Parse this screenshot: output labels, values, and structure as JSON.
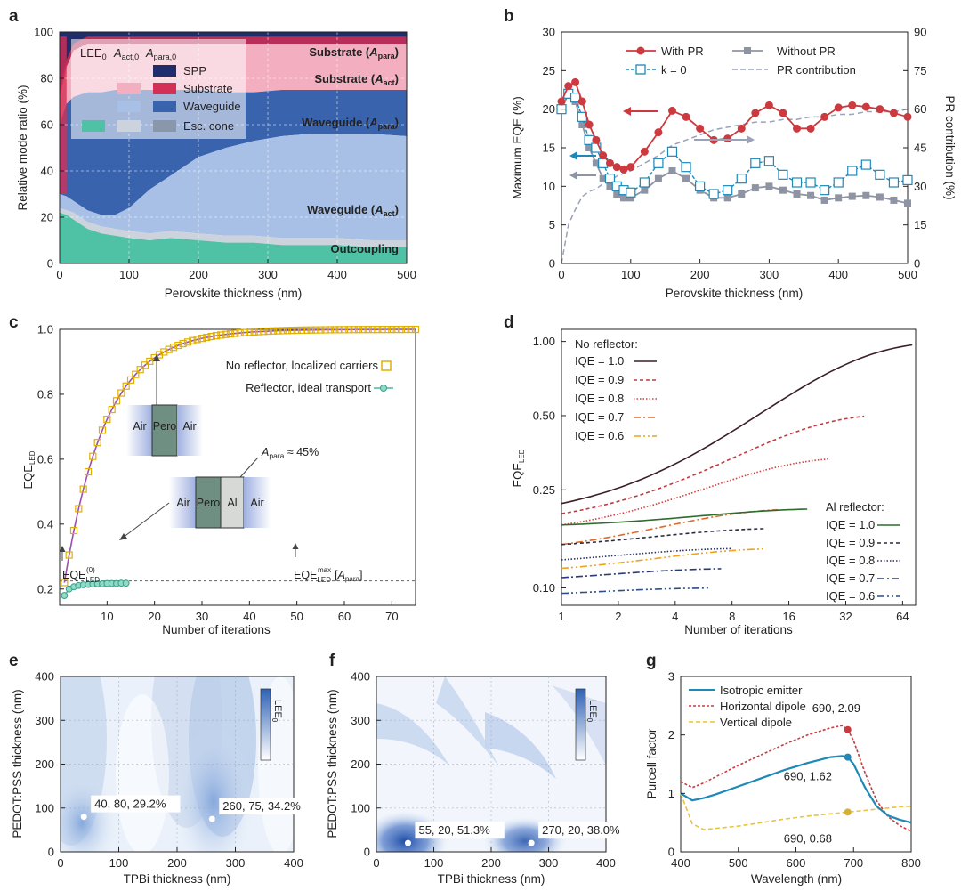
{
  "panel_letters": [
    "a",
    "b",
    "c",
    "d",
    "e",
    "f",
    "g"
  ],
  "colors": {
    "spp": "#1f2d6d",
    "substrate_dark": "#d42f55",
    "substrate_light": "#f3aebf",
    "waveguide_dark": "#3a63ad",
    "waveguide_light": "#a8c0e6",
    "esc_dark": "#8a96aa",
    "esc_light": "#cdd3dd",
    "outcoupling": "#4fc1a5",
    "red": "#cc3a3f",
    "blue": "#1e88b8",
    "gray": "#8e94a3"
  },
  "chart_data": [
    {
      "id": "a",
      "type": "area",
      "xlabel": "Perovskite thickness (nm)",
      "ylabel": "Relative mode ratio (%)",
      "xlim": [
        0,
        500
      ],
      "ylim": [
        0,
        100
      ],
      "xticks": [
        "0",
        "100",
        "200",
        "300",
        "400",
        "500"
      ],
      "yticks": [
        "0",
        "20",
        "40",
        "60",
        "80",
        "100"
      ],
      "x": [
        0,
        10,
        20,
        40,
        60,
        80,
        100,
        130,
        160,
        200,
        240,
        280,
        320,
        360,
        400,
        450,
        500
      ],
      "boundaries": {
        "outcoupling": [
          22,
          21,
          19,
          15,
          13,
          12,
          11,
          10,
          11,
          10,
          9,
          9,
          8,
          8,
          8,
          7,
          7
        ],
        "esc_cone": [
          24,
          23,
          22,
          18,
          16,
          15,
          14,
          13,
          14,
          13,
          12,
          12,
          11,
          11,
          11,
          10,
          10
        ],
        "waveguide_act": [
          30,
          29,
          27,
          23,
          21,
          21,
          24,
          32,
          38,
          46,
          50,
          53,
          55,
          56,
          56,
          56,
          55
        ],
        "waveguide_para": [
          60,
          69,
          72,
          74,
          74,
          75,
          75,
          75,
          75,
          75,
          74,
          74,
          75,
          75,
          75,
          75,
          75
        ],
        "substrate_act": [
          72,
          85,
          92,
          95,
          95,
          95,
          95,
          95,
          95,
          95,
          95,
          95,
          95,
          95,
          95,
          95,
          95
        ],
        "substrate_para": [
          100,
          100,
          100,
          100,
          100,
          100,
          100,
          100,
          100,
          100,
          100,
          100,
          100,
          100,
          100,
          100,
          100
        ]
      },
      "area_labels": [
        "Substrate (A_para)",
        "Substrate (A_act)",
        "Waveguide (A_para)",
        "Waveguide (A_act)",
        "Outcoupling"
      ],
      "legend_header": [
        "LEE0",
        "A_act,0",
        "A_para,0"
      ],
      "legend_items": [
        "SPP",
        "Substrate",
        "Waveguide",
        "Esc. cone"
      ]
    },
    {
      "id": "b",
      "type": "line",
      "xlabel": "Perovskite thickness (nm)",
      "ylabel": "Maximum EQE (%)",
      "y2label": "PR contribution (%)",
      "xlim": [
        0,
        500
      ],
      "ylim": [
        0,
        30
      ],
      "y2lim": [
        0,
        90
      ],
      "xticks": [
        "0",
        "100",
        "200",
        "300",
        "400",
        "500"
      ],
      "yticks": [
        "0",
        "5",
        "10",
        "15",
        "20",
        "25",
        "30"
      ],
      "y2ticks": [
        "0",
        "15",
        "30",
        "45",
        "60",
        "75",
        "90"
      ],
      "x": [
        0,
        10,
        20,
        30,
        40,
        50,
        60,
        70,
        80,
        90,
        100,
        120,
        140,
        160,
        180,
        200,
        220,
        240,
        260,
        280,
        300,
        320,
        340,
        360,
        380,
        400,
        420,
        440,
        460,
        480,
        500
      ],
      "series": [
        {
          "name": "With PR",
          "values": [
            21,
            23,
            23.5,
            21,
            18,
            16,
            14,
            13,
            12.5,
            12.2,
            12.5,
            14.5,
            17,
            19.8,
            19,
            17.5,
            16,
            16.2,
            17.5,
            19.5,
            20.5,
            19.5,
            17.5,
            17.5,
            19,
            20.2,
            20.5,
            20.3,
            20,
            19.5,
            19
          ]
        },
        {
          "name": "k = 0",
          "values": [
            20,
            22,
            21.5,
            19,
            16,
            15,
            13,
            11,
            10,
            9.5,
            9.2,
            10.5,
            13,
            14.5,
            12.5,
            10,
            9,
            9.5,
            11,
            13,
            13.3,
            11.5,
            10.5,
            10.5,
            9.5,
            10.5,
            12,
            12.8,
            11.5,
            10.5,
            10.8
          ]
        },
        {
          "name": "Without PR",
          "values": [
            20,
            22,
            21,
            18,
            15,
            13,
            11,
            10,
            9,
            8.5,
            8.5,
            9.5,
            11,
            12,
            11,
            9.5,
            8.5,
            8.5,
            9,
            9.8,
            10,
            9.5,
            9,
            8.8,
            8.2,
            8.5,
            8.7,
            8.8,
            8.6,
            8.2,
            7.8
          ]
        },
        {
          "name": "PR contribution",
          "axis": "right",
          "values": [
            0,
            15,
            21,
            26,
            28,
            29,
            31,
            32,
            34,
            35,
            36,
            39,
            42,
            46,
            48,
            50,
            52,
            53,
            54,
            55,
            55,
            56,
            56,
            57,
            57,
            58,
            58,
            59,
            59,
            59,
            60
          ]
        }
      ]
    },
    {
      "id": "c",
      "type": "line",
      "xlabel": "Number of iterations",
      "ylabel": "EQE_LED",
      "xlim": [
        0,
        75
      ],
      "ylim": [
        0.15,
        1.0
      ],
      "xticks": [
        "10",
        "20",
        "30",
        "40",
        "50",
        "60",
        "70"
      ],
      "yticks": [
        "0.2",
        "0.4",
        "0.6",
        "0.8",
        "1.0"
      ],
      "series": [
        {
          "name": "No reflector, localized carriers",
          "curve": "1 - 0.78*exp(-0.115*(n-1))"
        },
        {
          "name": "Reflector, ideal transport",
          "values": [
            0.18,
            0.2,
            0.207,
            0.211,
            0.213,
            0.214,
            0.215,
            0.216,
            0.216,
            0.217,
            0.217,
            0.217,
            0.218,
            0.218
          ]
        }
      ],
      "dashed_level": 0.225,
      "annotations": [
        "EQE_LED(0)",
        "EQE_LED max [A_para]",
        "A_para ≈ 45%"
      ],
      "inset_labels": {
        "top": [
          "Air",
          "Pero",
          "Air"
        ],
        "bottom": [
          "Air",
          "Pero",
          "Al",
          "Air"
        ]
      }
    },
    {
      "id": "d",
      "type": "line",
      "xscale": "log2",
      "yscale": "log",
      "xlabel": "Number of iterations",
      "ylabel": "EQE_LED",
      "xticks": [
        "1",
        "2",
        "4",
        "8",
        "16",
        "32",
        "64"
      ],
      "yticks": [
        "0.10",
        "0.25",
        "0.50",
        "1.00"
      ],
      "legend_title_1": "No reflector:",
      "legend_title_2": "Al reflector:",
      "series": [
        {
          "name": "IQE = 1.0",
          "group": "No reflector",
          "start": 0.22,
          "end": 1.0,
          "max_iter": 72
        },
        {
          "name": "IQE = 0.9",
          "group": "No reflector",
          "start": 0.2,
          "end": 0.51,
          "max_iter": 40
        },
        {
          "name": "IQE = 0.8",
          "group": "No reflector",
          "start": 0.18,
          "end": 0.34,
          "max_iter": 26
        },
        {
          "name": "IQE = 0.7",
          "group": "No reflector",
          "start": 0.15,
          "end": 0.21,
          "max_iter": 14
        },
        {
          "name": "IQE = 0.6",
          "group": "No reflector",
          "start": 0.12,
          "end": 0.145,
          "max_iter": 12
        },
        {
          "name": "IQE = 1.0",
          "group": "Al reflector",
          "start": 0.18,
          "end": 0.21,
          "max_iter": 20
        },
        {
          "name": "IQE = 0.9",
          "group": "Al reflector",
          "start": 0.15,
          "end": 0.175,
          "max_iter": 12
        },
        {
          "name": "IQE = 0.8",
          "group": "Al reflector",
          "start": 0.13,
          "end": 0.145,
          "max_iter": 8
        },
        {
          "name": "IQE = 0.7",
          "group": "Al reflector",
          "start": 0.11,
          "end": 0.12,
          "max_iter": 7
        },
        {
          "name": "IQE = 0.6",
          "group": "Al reflector",
          "start": 0.095,
          "end": 0.1,
          "max_iter": 6
        }
      ]
    },
    {
      "id": "e",
      "type": "heatmap",
      "xlabel": "TPBi thickness (nm)",
      "ylabel": "PEDOT:PSS thickness (nm)",
      "xlim": [
        0,
        400
      ],
      "ylim": [
        0,
        400
      ],
      "xticks": [
        "0",
        "100",
        "200",
        "300",
        "400"
      ],
      "yticks": [
        "0",
        "100",
        "200",
        "300",
        "400"
      ],
      "colorbar_label": "LEE0",
      "points": [
        {
          "x": 40,
          "y": 80,
          "label": "40, 80, 29.2%"
        },
        {
          "x": 260,
          "y": 75,
          "label": "260, 75, 34.2%"
        }
      ]
    },
    {
      "id": "f",
      "type": "heatmap",
      "xlabel": "TPBi thickness (nm)",
      "ylabel": "PEDOT:PSS thickness (nm)",
      "xlim": [
        0,
        400
      ],
      "ylim": [
        0,
        400
      ],
      "xticks": [
        "0",
        "100",
        "200",
        "300",
        "400"
      ],
      "yticks": [
        "0",
        "100",
        "200",
        "300",
        "400"
      ],
      "colorbar_label": "LEE0",
      "points": [
        {
          "x": 55,
          "y": 20,
          "label": "55, 20, 51.3%"
        },
        {
          "x": 270,
          "y": 20,
          "label": "270, 20, 38.0%"
        }
      ]
    },
    {
      "id": "g",
      "type": "line",
      "xlabel": "Wavelength (nm)",
      "ylabel": "Purcell factor",
      "xlim": [
        400,
        800
      ],
      "ylim": [
        0,
        3
      ],
      "xticks": [
        "400",
        "500",
        "600",
        "700",
        "800"
      ],
      "yticks": [
        "0",
        "1",
        "2",
        "3"
      ],
      "x": [
        400,
        420,
        440,
        460,
        500,
        540,
        580,
        620,
        660,
        680,
        690,
        700,
        720,
        740,
        760,
        780,
        800
      ],
      "series": [
        {
          "name": "Isotropic emitter",
          "values": [
            1.0,
            0.88,
            0.92,
            0.98,
            1.12,
            1.26,
            1.4,
            1.52,
            1.62,
            1.64,
            1.62,
            1.5,
            1.1,
            0.78,
            0.62,
            0.55,
            0.5
          ]
        },
        {
          "name": "Horizontal dipole",
          "values": [
            1.2,
            1.1,
            1.18,
            1.28,
            1.48,
            1.66,
            1.84,
            2.0,
            2.12,
            2.16,
            2.09,
            1.9,
            1.35,
            0.88,
            0.6,
            0.45,
            0.35
          ]
        },
        {
          "name": "Vertical dipole",
          "values": [
            1.0,
            0.48,
            0.38,
            0.4,
            0.44,
            0.5,
            0.56,
            0.61,
            0.65,
            0.67,
            0.68,
            0.69,
            0.71,
            0.73,
            0.75,
            0.77,
            0.78
          ]
        }
      ],
      "points": [
        {
          "x": 690,
          "y": 2.09,
          "label": "690, 2.09"
        },
        {
          "x": 690,
          "y": 1.62,
          "label": "690, 1.62"
        },
        {
          "x": 690,
          "y": 0.68,
          "label": "690, 0.68"
        }
      ]
    }
  ]
}
